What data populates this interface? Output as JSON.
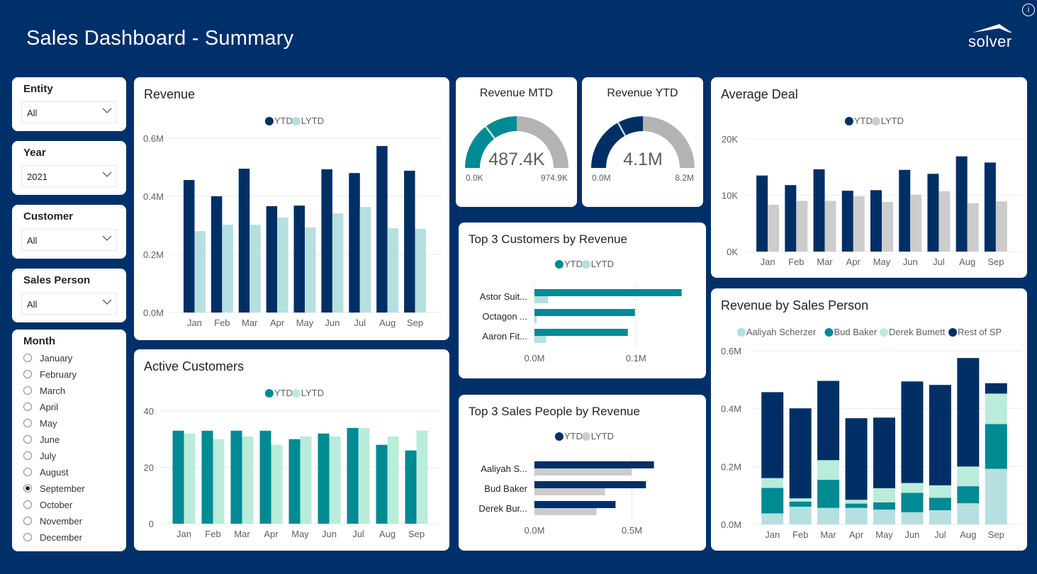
{
  "header": {
    "title": "Sales Dashboard - Summary",
    "logo_text": "solver",
    "info_icon": "i"
  },
  "colors": {
    "background": "#00306a",
    "navy": "#002f66",
    "light_teal": "#b6dfe0",
    "teal": "#008a93",
    "mint": "#b9ecda",
    "gray": "#cccccc",
    "gauge_gray": "#b3b3b3"
  },
  "slicers": {
    "entity": {
      "label": "Entity",
      "value": "All"
    },
    "year": {
      "label": "Year",
      "value": "2021"
    },
    "customer": {
      "label": "Customer",
      "value": "All"
    },
    "sales_person": {
      "label": "Sales Person",
      "value": "All"
    },
    "month": {
      "label": "Month",
      "options": [
        "January",
        "February",
        "March",
        "April",
        "May",
        "June",
        "July",
        "August",
        "September",
        "October",
        "November",
        "December"
      ],
      "selected": "September"
    }
  },
  "chart_data": [
    {
      "id": "revenue",
      "type": "bar",
      "title": "Revenue",
      "categories": [
        "Jan",
        "Feb",
        "Mar",
        "Apr",
        "May",
        "Jun",
        "Jul",
        "Aug",
        "Sep"
      ],
      "series": [
        {
          "name": "YTD",
          "color": "#002f66",
          "values": [
            0.456,
            0.4,
            0.495,
            0.366,
            0.368,
            0.493,
            0.48,
            0.573,
            0.488
          ]
        },
        {
          "name": "LYTD",
          "color": "#b6dfe0",
          "values": [
            0.28,
            0.302,
            0.302,
            0.327,
            0.293,
            0.341,
            0.363,
            0.29,
            0.288
          ]
        }
      ],
      "yticks": [
        "0.0M",
        "0.2M",
        "0.4M",
        "0.6M"
      ],
      "ylim": [
        0,
        0.6
      ],
      "unit": "M",
      "legend": "top-center",
      "grid": true
    },
    {
      "id": "active_customers",
      "type": "bar",
      "title": "Active Customers",
      "categories": [
        "Jan",
        "Feb",
        "Mar",
        "Apr",
        "May",
        "Jun",
        "Jul",
        "Aug",
        "Sep"
      ],
      "series": [
        {
          "name": "YTD",
          "color": "#008a93",
          "values": [
            33,
            33,
            33,
            33,
            30,
            32,
            34,
            28,
            26
          ]
        },
        {
          "name": "LYTD",
          "color": "#b9ecda",
          "values": [
            32,
            30,
            31,
            28,
            31,
            31,
            34,
            31,
            33
          ]
        }
      ],
      "yticks": [
        "0",
        "20",
        "40"
      ],
      "ylim": [
        0,
        40
      ],
      "legend": "top-center",
      "grid": true
    },
    {
      "id": "revenue_mtd",
      "type": "gauge",
      "title": "Revenue MTD",
      "value": 487.4,
      "value_label": "487.4K",
      "min_label": "0.0K",
      "max_label": "974.9K",
      "min": 0,
      "max": 974.9,
      "target": 288,
      "color": "#008a93",
      "target_color": "#b9ecda"
    },
    {
      "id": "revenue_ytd",
      "type": "gauge",
      "title": "Revenue YTD",
      "value": 4.1,
      "value_label": "4.1M",
      "min_label": "0.0M",
      "max_label": "8.2M",
      "min": 0,
      "max": 8.2,
      "target": 2.79,
      "color": "#002f66",
      "target_color": "#b6dfe0"
    },
    {
      "id": "top_customers",
      "type": "bar",
      "orientation": "horizontal",
      "title": "Top 3 Customers by Revenue",
      "categories": [
        "Astor Suit...",
        "Octagon ...",
        "Aaron Fit..."
      ],
      "series": [
        {
          "name": "YTD",
          "color": "#008a93",
          "values": [
            0.145,
            0.099,
            0.092
          ]
        },
        {
          "name": "LYTD",
          "color": "#b6dfe0",
          "values": [
            0.0135,
            0.0023,
            0.0116
          ]
        }
      ],
      "xticks": [
        "0.0M",
        "0.1M"
      ],
      "xtick_values": [
        0,
        0.1
      ],
      "xlim": [
        0,
        0.155
      ],
      "legend": "top-center"
    },
    {
      "id": "top_sales_people",
      "type": "bar",
      "orientation": "horizontal",
      "title": "Top 3 Sales People by Revenue",
      "categories": [
        "Aaliyah S...",
        "Bud Baker",
        "Derek Bur..."
      ],
      "series": [
        {
          "name": "YTD",
          "color": "#002f66",
          "values": [
            0.613,
            0.572,
            0.416
          ]
        },
        {
          "name": "LYTD",
          "color": "#cccccc",
          "values": [
            0.498,
            0.362,
            0.319
          ]
        }
      ],
      "xticks": [
        "0.0M",
        "0.5M"
      ],
      "xtick_values": [
        0,
        0.5
      ],
      "xlim": [
        0,
        0.88
      ],
      "legend": "top-center"
    },
    {
      "id": "average_deal",
      "type": "bar",
      "title": "Average Deal",
      "categories": [
        "Jan",
        "Feb",
        "Mar",
        "Apr",
        "May",
        "Jun",
        "Jul",
        "Aug",
        "Sep"
      ],
      "series": [
        {
          "name": "YTD",
          "color": "#002f66",
          "values": [
            13.5,
            11.8,
            14.6,
            10.8,
            10.9,
            14.5,
            13.8,
            16.9,
            15.8
          ]
        },
        {
          "name": "LYTD",
          "color": "#cccccc",
          "values": [
            8.3,
            9.0,
            9.0,
            9.8,
            8.8,
            10.1,
            10.7,
            8.6,
            8.9
          ]
        }
      ],
      "yticks": [
        "0K",
        "10K",
        "20K"
      ],
      "ylim": [
        0,
        20
      ],
      "unit": "K",
      "legend": "top-center",
      "grid": true
    },
    {
      "id": "revenue_by_sales_person",
      "type": "bar",
      "stacked": true,
      "title": "Revenue by Sales Person",
      "categories": [
        "Jan",
        "Feb",
        "Mar",
        "Apr",
        "May",
        "Jun",
        "Jul",
        "Aug",
        "Sep"
      ],
      "series": [
        {
          "name": "Aaliyah Scherzer",
          "color": "#b6dfe0",
          "values": [
            0.038,
            0.061,
            0.057,
            0.057,
            0.051,
            0.042,
            0.049,
            0.073,
            0.192
          ]
        },
        {
          "name": "Bud Baker",
          "color": "#008a93",
          "values": [
            0.088,
            0.018,
            0.097,
            0.015,
            0.025,
            0.067,
            0.043,
            0.059,
            0.155
          ]
        },
        {
          "name": "Derek Bumett",
          "color": "#b9ecda",
          "values": [
            0.034,
            0.011,
            0.068,
            0.013,
            0.049,
            0.034,
            0.043,
            0.068,
            0.105
          ]
        },
        {
          "name": "Rest of SP",
          "color": "#002f66",
          "values": [
            0.297,
            0.311,
            0.274,
            0.282,
            0.244,
            0.351,
            0.347,
            0.375,
            0.036
          ]
        }
      ],
      "yticks": [
        "0.0M",
        "0.2M",
        "0.4M",
        "0.6M"
      ],
      "ylim": [
        0,
        0.6
      ],
      "unit": "M",
      "legend": "top-center",
      "grid": true
    }
  ]
}
